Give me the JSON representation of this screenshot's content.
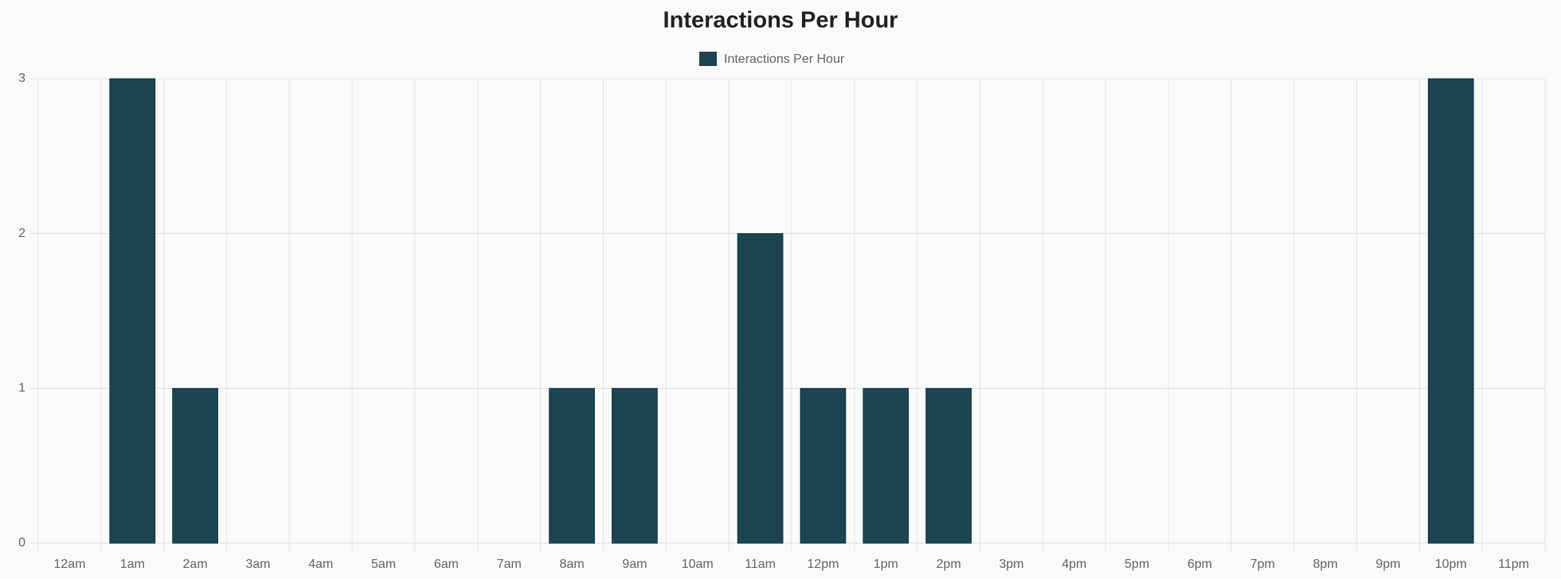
{
  "chart_data": {
    "type": "bar",
    "title": "Interactions Per Hour",
    "categories": [
      "12am",
      "1am",
      "2am",
      "3am",
      "4am",
      "5am",
      "6am",
      "7am",
      "8am",
      "9am",
      "10am",
      "11am",
      "12pm",
      "1pm",
      "2pm",
      "3pm",
      "4pm",
      "5pm",
      "6pm",
      "7pm",
      "8pm",
      "9pm",
      "10pm",
      "11pm"
    ],
    "series": [
      {
        "name": "Interactions Per Hour",
        "color": "#1b4453",
        "values": [
          0,
          3,
          1,
          0,
          0,
          0,
          0,
          0,
          1,
          1,
          0,
          2,
          1,
          1,
          1,
          0,
          0,
          0,
          0,
          0,
          0,
          0,
          3,
          0
        ]
      }
    ],
    "ylim": [
      0,
      3
    ],
    "yticks": [
      0,
      1,
      2,
      3
    ],
    "grid": true,
    "legend": "top"
  }
}
